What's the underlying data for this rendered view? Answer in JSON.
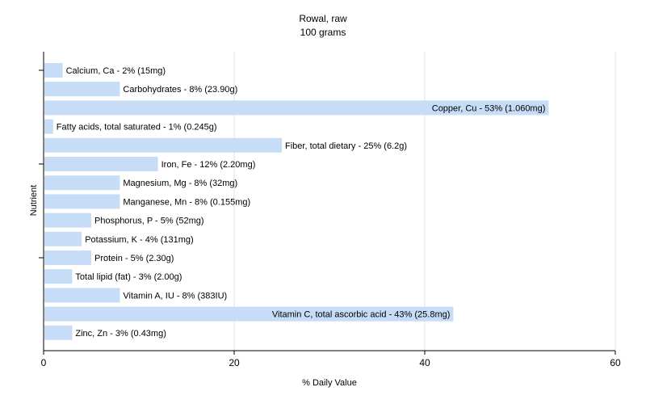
{
  "chart_data": {
    "type": "bar",
    "orientation": "horizontal",
    "title": "Rowal, raw",
    "subtitle": "100 grams",
    "xlabel": "% Daily Value",
    "ylabel": "Nutrient",
    "xlim": [
      0,
      60
    ],
    "xticks": [
      0,
      20,
      40,
      60
    ],
    "grid": true,
    "bar_color": "#c6dcf7",
    "categories": [
      "Calcium, Ca",
      "Carbohydrates",
      "Copper, Cu",
      "Fatty acids, total saturated",
      "Fiber, total dietary",
      "Iron, Fe",
      "Magnesium, Mg",
      "Manganese, Mn",
      "Phosphorus, P",
      "Potassium, K",
      "Protein",
      "Total lipid (fat)",
      "Vitamin A, IU",
      "Vitamin C, total ascorbic acid",
      "Zinc, Zn"
    ],
    "values": [
      2,
      8,
      53,
      1,
      25,
      12,
      8,
      8,
      5,
      4,
      5,
      3,
      8,
      43,
      3
    ],
    "labels": [
      "Calcium, Ca - 2% (15mg)",
      "Carbohydrates - 8% (23.90g)",
      "Copper, Cu - 53% (1.060mg)",
      "Fatty acids, total saturated - 1% (0.245g)",
      "Fiber, total dietary - 25% (6.2g)",
      "Iron, Fe - 12% (2.20mg)",
      "Magnesium, Mg - 8% (32mg)",
      "Manganese, Mn - 8% (0.155mg)",
      "Phosphorus, P - 5% (52mg)",
      "Potassium, K - 4% (131mg)",
      "Protein - 5% (2.30g)",
      "Total lipid (fat) - 3% (2.00g)",
      "Vitamin A, IU - 8% (383IU)",
      "Vitamin C, total ascorbic acid - 43% (25.8mg)",
      "Zinc, Zn - 3% (0.43mg)"
    ]
  }
}
